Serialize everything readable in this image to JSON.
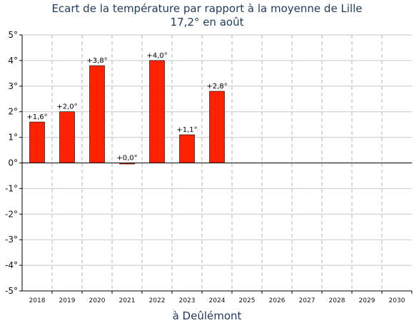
{
  "title": "Ecart de la température par rapport à la moyenne de Lille",
  "subtitle": "17,2° en août",
  "chart_data": {
    "type": "bar",
    "xlabel": "à Deûlémont",
    "ylabel": "",
    "ylim": [
      -5,
      5
    ],
    "yticks": [
      "-5°",
      "-4°",
      "-3°",
      "-2°",
      "-1°",
      "0°",
      "1°",
      "2°",
      "3°",
      "4°",
      "5°"
    ],
    "categories": [
      "2018",
      "2019",
      "2020",
      "2021",
      "2022",
      "2023",
      "2024",
      "2025",
      "2026",
      "2027",
      "2028",
      "2029",
      "2030"
    ],
    "values": [
      1.6,
      2.0,
      3.8,
      0.0,
      4.0,
      1.1,
      2.8,
      null,
      null,
      null,
      null,
      null,
      null
    ],
    "data_labels": [
      "+1,6°",
      "+2,0°",
      "+3,8°",
      "+0,0°",
      "+4,0°",
      "+1,1°",
      "+2,8°",
      "",
      "",
      "",
      "",
      "",
      ""
    ],
    "bar_color": "#ff2200",
    "grid": true,
    "legend": "none"
  }
}
